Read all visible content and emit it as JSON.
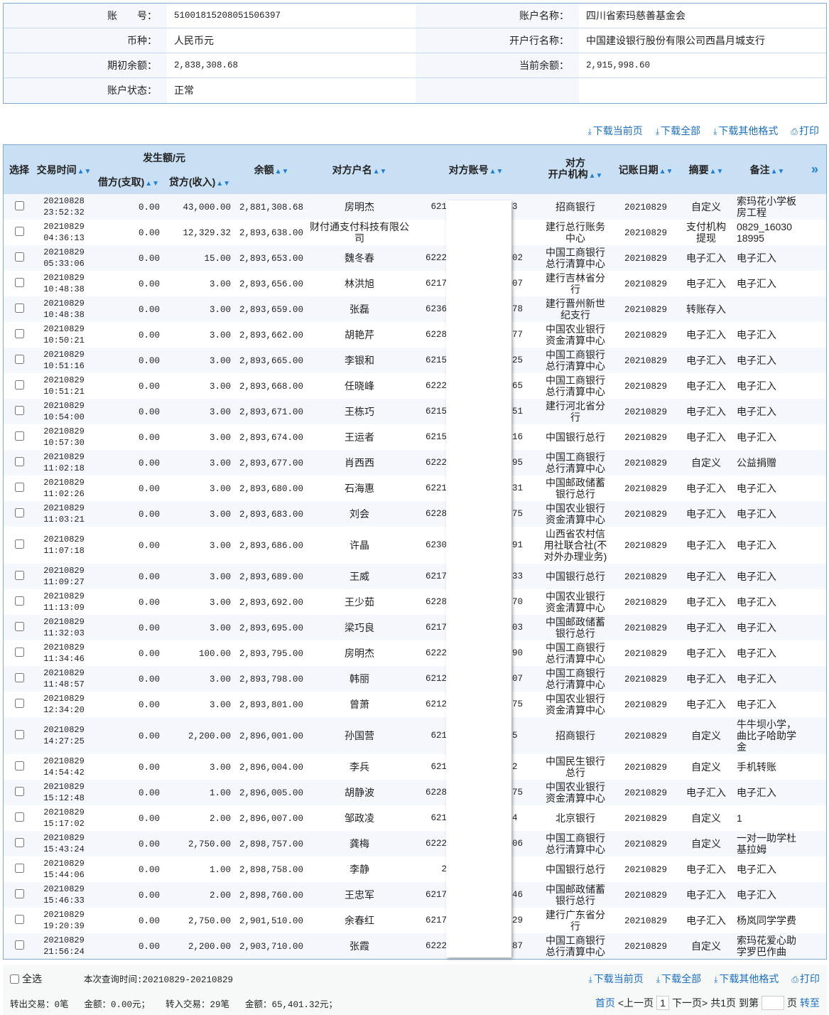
{
  "account_info": {
    "rows": [
      {
        "label": "账　　号：",
        "value": "51001815208051506397",
        "label2": "账户名称：",
        "value2": "四川省索玛慈善基金会"
      },
      {
        "label": "币种：",
        "value": "人民币元",
        "label2": "开户行名称：",
        "value2": "中国建设银行股份有限公司西昌月城支行"
      },
      {
        "label": "期初余额：",
        "value": "2,838,308.68",
        "label2": "当前余额：",
        "value2": "2,915,998.60"
      },
      {
        "label": "账户状态：",
        "value": "正常",
        "label2": "",
        "value2": ""
      }
    ]
  },
  "toolbar": {
    "download_page": "下载当前页",
    "download_all": "下载全部",
    "download_other": "下载其他格式",
    "print": "打印"
  },
  "table": {
    "headers": {
      "select": "选择",
      "time": "交易时间",
      "amount_group": "发生额/元",
      "debit": "借方(支取)",
      "credit": "贷方(收入)",
      "balance": "余额",
      "name": "对方户名",
      "account": "对方账号",
      "bank": "对方\n开户机构",
      "date": "记账日期",
      "summary": "摘要",
      "remark": "备注",
      "more": "»"
    },
    "rows": [
      [
        "20210828",
        "23:52:32",
        "0.00",
        "43,000.00",
        "2,881,308.68",
        "房明杰",
        "621",
        "3",
        "招商银行",
        "20210829",
        "自定义",
        "索玛花小学板房工程"
      ],
      [
        "20210829",
        "04:36:13",
        "0.00",
        "12,329.32",
        "2,893,638.00",
        "财付通支付科技有限公司",
        "",
        "",
        "建行总行账务中心",
        "20210829",
        "支付机构提现",
        "0829_16030 18995"
      ],
      [
        "20210829",
        "05:33:06",
        "0.00",
        "15.00",
        "2,893,653.00",
        "魏冬春",
        "6222",
        "02",
        "中国工商银行总行清算中心",
        "20210829",
        "电子汇入",
        "电子汇入"
      ],
      [
        "20210829",
        "10:48:38",
        "0.00",
        "3.00",
        "2,893,656.00",
        "林洪旭",
        "6217",
        "07",
        "建行吉林省分行",
        "20210829",
        "电子汇入",
        "电子汇入"
      ],
      [
        "20210829",
        "10:48:38",
        "0.00",
        "3.00",
        "2,893,659.00",
        "张磊",
        "6236",
        "78",
        "建行晋州新世纪支行",
        "20210829",
        "转账存入",
        ""
      ],
      [
        "20210829",
        "10:50:21",
        "0.00",
        "3.00",
        "2,893,662.00",
        "胡艳芹",
        "6228",
        "77",
        "中国农业银行资金清算中心",
        "20210829",
        "电子汇入",
        "电子汇入"
      ],
      [
        "20210829",
        "10:51:16",
        "0.00",
        "3.00",
        "2,893,665.00",
        "李银和",
        "6215",
        "25",
        "中国工商银行总行清算中心",
        "20210829",
        "电子汇入",
        "电子汇入"
      ],
      [
        "20210829",
        "10:51:21",
        "0.00",
        "3.00",
        "2,893,668.00",
        "任晓峰",
        "6222",
        "65",
        "中国工商银行总行清算中心",
        "20210829",
        "电子汇入",
        "电子汇入"
      ],
      [
        "20210829",
        "10:54:00",
        "0.00",
        "3.00",
        "2,893,671.00",
        "王栋巧",
        "6215",
        "51",
        "建行河北省分行",
        "20210829",
        "电子汇入",
        "电子汇入"
      ],
      [
        "20210829",
        "10:57:30",
        "0.00",
        "3.00",
        "2,893,674.00",
        "王运者",
        "6215",
        "16",
        "中国银行总行",
        "20210829",
        "电子汇入",
        "电子汇入"
      ],
      [
        "20210829",
        "11:02:18",
        "0.00",
        "3.00",
        "2,893,677.00",
        "肖西西",
        "6222",
        "95",
        "中国工商银行总行清算中心",
        "20210829",
        "自定义",
        "公益捐赠"
      ],
      [
        "20210829",
        "11:02:26",
        "0.00",
        "3.00",
        "2,893,680.00",
        "石海惠",
        "6221",
        "31",
        "中国邮政储蓄银行总行",
        "20210829",
        "电子汇入",
        "电子汇入"
      ],
      [
        "20210829",
        "11:03:21",
        "0.00",
        "3.00",
        "2,893,683.00",
        "刘会",
        "6228",
        "75",
        "中国农业银行资金清算中心",
        "20210829",
        "电子汇入",
        "电子汇入"
      ],
      [
        "20210829",
        "11:07:18",
        "0.00",
        "3.00",
        "2,893,686.00",
        "许晶",
        "6230",
        "91",
        "山西省农村信用社联合社(不对外办理业务)",
        "20210829",
        "电子汇入",
        "电子汇入"
      ],
      [
        "20210829",
        "11:09:27",
        "0.00",
        "3.00",
        "2,893,689.00",
        "王威",
        "6217",
        "33",
        "中国银行总行",
        "20210829",
        "电子汇入",
        "电子汇入"
      ],
      [
        "20210829",
        "11:13:09",
        "0.00",
        "3.00",
        "2,893,692.00",
        "王少茹",
        "6228",
        "70",
        "中国农业银行资金清算中心",
        "20210829",
        "电子汇入",
        "电子汇入"
      ],
      [
        "20210829",
        "11:32:03",
        "0.00",
        "3.00",
        "2,893,695.00",
        "梁巧良",
        "6217",
        "03",
        "中国邮政储蓄银行总行",
        "20210829",
        "电子汇入",
        "电子汇入"
      ],
      [
        "20210829",
        "11:34:46",
        "0.00",
        "100.00",
        "2,893,795.00",
        "房明杰",
        "6222",
        "90",
        "中国工商银行总行清算中心",
        "20210829",
        "电子汇入",
        "电子汇入"
      ],
      [
        "20210829",
        "11:48:57",
        "0.00",
        "3.00",
        "2,893,798.00",
        "韩丽",
        "6212",
        "07",
        "中国工商银行总行清算中心",
        "20210829",
        "电子汇入",
        "电子汇入"
      ],
      [
        "20210829",
        "12:34:20",
        "0.00",
        "3.00",
        "2,893,801.00",
        "曾萧",
        "6212",
        "75",
        "中国农业银行资金清算中心",
        "20210829",
        "电子汇入",
        "电子汇入"
      ],
      [
        "20210829",
        "14:27:25",
        "0.00",
        "2,200.00",
        "2,896,001.00",
        "孙国营",
        "621",
        "5",
        "招商银行",
        "20210829",
        "自定义",
        "牛牛坝小学，曲比子哈助学金"
      ],
      [
        "20210829",
        "14:54:42",
        "0.00",
        "3.00",
        "2,896,004.00",
        "李兵",
        "621",
        "2",
        "中国民生银行总行",
        "20210829",
        "自定义",
        "手机转账"
      ],
      [
        "20210829",
        "15:12:48",
        "0.00",
        "1.00",
        "2,896,005.00",
        "胡静波",
        "6228",
        "75",
        "中国农业银行资金清算中心",
        "20210829",
        "电子汇入",
        "电子汇入"
      ],
      [
        "20210829",
        "15:17:02",
        "0.00",
        "2.00",
        "2,896,007.00",
        "邹政凌",
        "621",
        "4",
        "北京银行",
        "20210829",
        "自定义",
        "1"
      ],
      [
        "20210829",
        "15:43:24",
        "0.00",
        "2,750.00",
        "2,898,757.00",
        "龚梅",
        "6222",
        "06",
        "中国工商银行总行清算中心",
        "20210829",
        "自定义",
        "一对一助学杜基拉姆"
      ],
      [
        "20210829",
        "15:44:06",
        "0.00",
        "1.00",
        "2,898,758.00",
        "李静",
        "2",
        "",
        "中国银行总行",
        "20210829",
        "电子汇入",
        "电子汇入"
      ],
      [
        "20210829",
        "15:46:33",
        "0.00",
        "2.00",
        "2,898,760.00",
        "王忠军",
        "6217",
        "46",
        "中国邮政储蓄银行总行",
        "20210829",
        "电子汇入",
        "电子汇入"
      ],
      [
        "20210829",
        "19:20:39",
        "0.00",
        "2,750.00",
        "2,901,510.00",
        "余春红",
        "6217",
        "29",
        "建行广东省分行",
        "20210829",
        "电子汇入",
        "杨岚同学学费"
      ],
      [
        "20210829",
        "21:56:24",
        "0.00",
        "2,200.00",
        "2,903,710.00",
        "张霞",
        "6222",
        "87",
        "中国工商银行总行清算中心",
        "20210829",
        "自定义",
        "索玛花爱心助学罗巴作曲"
      ]
    ]
  },
  "footer": {
    "select_all": "全选",
    "query_time": "本次查询时间:20210829-20210829",
    "out_count": "转出交易：0笔",
    "out_amount": "金额：0.00元；",
    "in_count": "转入交易：29笔",
    "in_amount": "金额：65,401.32元；"
  },
  "pager": {
    "first": "首页",
    "prev": "<上一页",
    "current": "1",
    "next": "下一页>",
    "total": "共1页",
    "goto_label": "到第",
    "goto_value": "",
    "page_unit": "页",
    "go": "转至"
  },
  "colors": {
    "header_bg": "#c9e0f4",
    "border": "#7fa9d6",
    "link": "#1a6fc2",
    "row_alt": "#f4f8fc"
  }
}
